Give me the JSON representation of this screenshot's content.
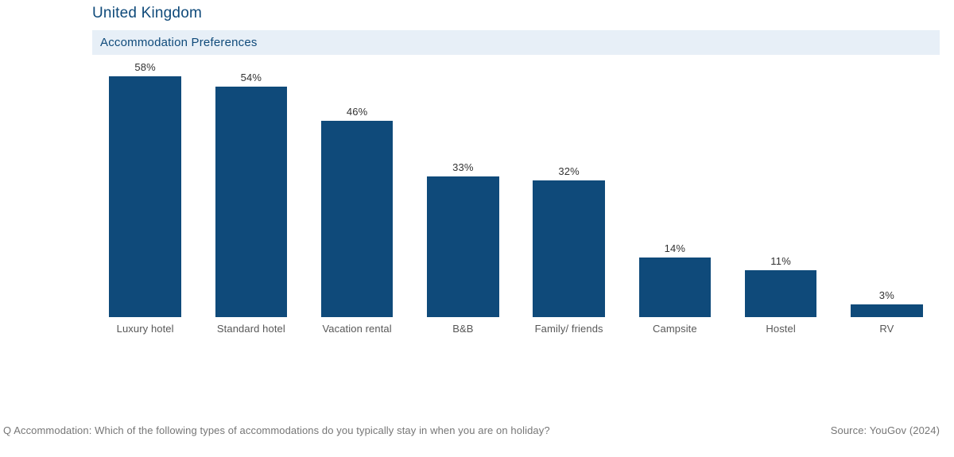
{
  "title": "United Kingdom",
  "subtitle": "Accommodation Preferences",
  "chart": {
    "type": "bar",
    "ylim": [
      0,
      60
    ],
    "bar_color": "#0f4a7a",
    "background_color": "#ffffff",
    "subtitle_bg": "#e7eff7",
    "title_color": "#0f4a7a",
    "label_color": "#585858",
    "value_color": "#333333",
    "title_fontsize": 19,
    "subtitle_fontsize": 15,
    "value_fontsize": 13,
    "label_fontsize": 13,
    "bar_width": 0.68,
    "categories": [
      "Luxury hotel",
      "Standard hotel",
      "Vacation rental",
      "B&B",
      "Family/ friends",
      "Campsite",
      "Hostel",
      "RV"
    ],
    "values": [
      58,
      54,
      46,
      33,
      32,
      14,
      11,
      3
    ],
    "value_suffix": "%"
  },
  "footer": {
    "question": "Q Accommodation: Which of the following types of accommodations do you typically stay in when you are on holiday?",
    "source": "Source: YouGov (2024)"
  }
}
